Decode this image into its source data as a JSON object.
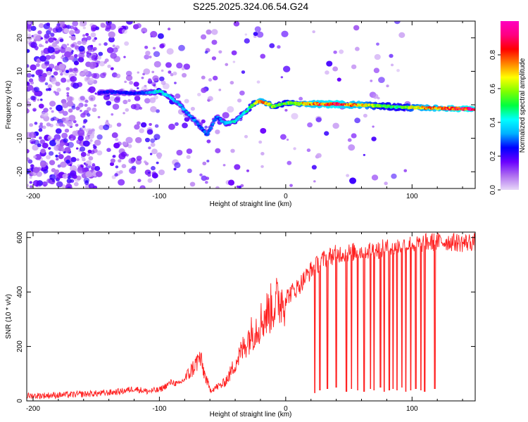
{
  "title": "S225.2025.324.06.54.G24",
  "chart_data": [
    {
      "type": "heatmap",
      "xlabel": "Height of straight line (km)",
      "ylabel": "Frequency (Hz)",
      "xlim": [
        -205,
        150
      ],
      "ylim": [
        -25,
        25
      ],
      "x_ticks": [
        -200,
        -100,
        0,
        100
      ],
      "x_tick_labels": [
        "-200",
        "-100",
        "0",
        "100"
      ],
      "y_ticks": [
        -20,
        -10,
        0,
        10,
        20
      ],
      "y_tick_labels": [
        "-20",
        "-10",
        "0",
        "10",
        "20"
      ],
      "ridge": {
        "x": [
          -148,
          -140,
          -130,
          -120,
          -110,
          -100,
          -92,
          -85,
          -78,
          -70,
          -62,
          -55,
          -48,
          -40,
          -35,
          -30,
          -25,
          -20,
          -15,
          -10,
          -5,
          0,
          5,
          10,
          20,
          30,
          40,
          50,
          60,
          70,
          80,
          90,
          100,
          110,
          120,
          130,
          140,
          150
        ],
        "y": [
          3.5,
          3.8,
          3.7,
          3.5,
          3.6,
          4.0,
          2.5,
          0.5,
          -2.5,
          -5.5,
          -9.0,
          -3.5,
          -5.5,
          -5.0,
          -3.0,
          -1.5,
          0.5,
          1.0,
          0.5,
          -0.5,
          0.0,
          0.5,
          0.5,
          0.3,
          0.3,
          0.2,
          0.2,
          0.0,
          0.0,
          -0.3,
          -0.5,
          -0.7,
          -0.8,
          -0.9,
          -1.0,
          -1.1,
          -1.2,
          -1.3
        ],
        "amplitude": [
          0.2,
          0.25,
          0.25,
          0.25,
          0.3,
          0.45,
          0.4,
          0.35,
          0.35,
          0.3,
          0.3,
          0.3,
          0.35,
          0.45,
          0.4,
          0.45,
          0.6,
          0.8,
          0.7,
          0.6,
          0.55,
          0.55,
          0.6,
          0.65,
          0.8,
          0.85,
          0.9,
          0.8,
          0.75,
          0.6,
          0.55,
          0.5,
          0.65,
          0.75,
          0.8,
          0.85,
          0.9,
          0.9
        ]
      },
      "colorbar": {
        "label": "Normalized spectral amplitude",
        "range": [
          0.0,
          1.0
        ],
        "ticks": [
          0.0,
          0.2,
          0.4,
          0.6,
          0.8
        ],
        "tick_labels": [
          "0.0",
          "0.2",
          "0.4",
          "0.6",
          "0.8"
        ],
        "colors": [
          "#e8d8f8",
          "#b070f0",
          "#6a00ff",
          "#0000ff",
          "#00b0ff",
          "#00ffff",
          "#00ff40",
          "#80ff00",
          "#ffff00",
          "#ff8000",
          "#ff0000",
          "#ff0080",
          "#ff00c0"
        ]
      }
    },
    {
      "type": "line",
      "xlabel": "Height of straight line (km)",
      "ylabel": "SNR (10 * v/v)",
      "xlim": [
        -205,
        150
      ],
      "ylim": [
        0,
        620
      ],
      "x_ticks": [
        -200,
        -100,
        0,
        100
      ],
      "x_tick_labels": [
        "-200",
        "-100",
        "0",
        "100"
      ],
      "y_ticks": [
        0,
        200,
        400,
        600
      ],
      "y_tick_labels": [
        "0",
        "200",
        "400",
        "600"
      ],
      "series": [
        {
          "name": "SNR",
          "color": "#ff2020",
          "x": [
            -205,
            -190,
            -175,
            -160,
            -145,
            -130,
            -120,
            -110,
            -100,
            -95,
            -90,
            -85,
            -80,
            -75,
            -72,
            -68,
            -65,
            -60,
            -55,
            -50,
            -45,
            -40,
            -35,
            -30,
            -25,
            -20,
            -15,
            -10,
            -5,
            0,
            5,
            10,
            15,
            20,
            25,
            30,
            35,
            40,
            50,
            60,
            70,
            80,
            90,
            100,
            110,
            120,
            130,
            140,
            150
          ],
          "y": [
            18,
            20,
            22,
            25,
            28,
            35,
            45,
            35,
            40,
            55,
            70,
            60,
            80,
            110,
            130,
            160,
            110,
            40,
            50,
            60,
            90,
            140,
            180,
            230,
            260,
            290,
            320,
            350,
            370,
            380,
            400,
            420,
            450,
            480,
            500,
            520,
            530,
            540,
            545,
            550,
            555,
            560,
            570,
            575,
            580,
            585,
            585,
            580,
            585
          ],
          "dropouts": {
            "x": [
              23,
              27,
              33,
              40,
              48,
              52,
              57,
              62,
              67,
              70,
              75,
              78,
              82,
              85,
              88,
              92,
              95,
              99,
              103,
              107,
              110,
              118
            ],
            "y": [
              30,
              40,
              45,
              50,
              35,
              45,
              40,
              35,
              45,
              40,
              50,
              35,
              40,
              45,
              40,
              50,
              35,
              40,
              45,
              40,
              35,
              45
            ]
          }
        }
      ]
    }
  ]
}
